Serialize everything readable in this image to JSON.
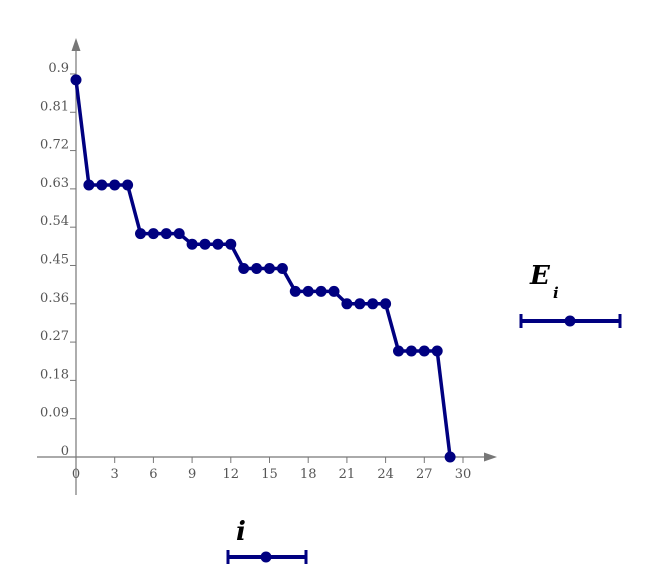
{
  "chart_data": {
    "type": "line",
    "x": [
      0,
      1,
      2,
      3,
      4,
      5,
      6,
      7,
      8,
      9,
      10,
      11,
      12,
      13,
      14,
      15,
      16,
      17,
      18,
      19,
      20,
      21,
      22,
      23,
      24,
      25,
      26,
      27,
      28,
      29
    ],
    "series": [
      {
        "name": "E",
        "name_subscript": "i",
        "values": [
          0.886,
          0.639,
          0.639,
          0.639,
          0.639,
          0.525,
          0.525,
          0.525,
          0.525,
          0.5,
          0.5,
          0.5,
          0.5,
          0.443,
          0.443,
          0.443,
          0.443,
          0.389,
          0.389,
          0.389,
          0.389,
          0.36,
          0.36,
          0.36,
          0.36,
          0.249,
          0.249,
          0.249,
          0.249,
          0.0
        ],
        "color": "#000080"
      }
    ],
    "x_ticks": [
      "0",
      "3",
      "6",
      "9",
      "12",
      "15",
      "18",
      "21",
      "24",
      "27",
      "30"
    ],
    "y_ticks": [
      "0",
      "0.09",
      "0.18",
      "0.27",
      "0.36",
      "0.45",
      "0.54",
      "0.63",
      "0.72",
      "0.81",
      "0.9"
    ],
    "xlim": [
      0,
      32
    ],
    "ylim": [
      0,
      0.98
    ],
    "xlabel": "i",
    "ylabel": "E",
    "ylabel_subscript": "i",
    "grid": false,
    "axis_color": "#777777"
  }
}
